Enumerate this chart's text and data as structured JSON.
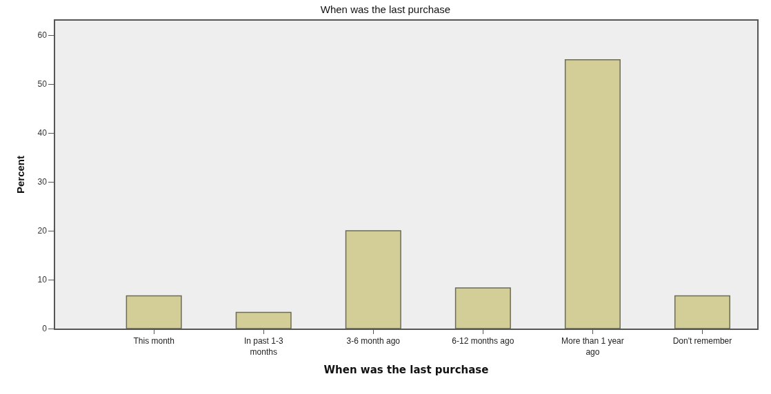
{
  "chart_data": {
    "type": "bar",
    "title": "When was the last purchase",
    "xlabel": "When was the last purchase",
    "ylabel": "Percent",
    "categories": [
      "This month",
      "In past 1-3 months",
      "3-6 month ago",
      "6-12 months ago",
      "More than 1 year ago",
      "Don't remember"
    ],
    "values": [
      6.7,
      3.3,
      20,
      8.3,
      55,
      6.7
    ],
    "color": "#d3ce97",
    "ylim": [
      0,
      63
    ],
    "yticks": [
      0,
      10,
      20,
      30,
      40,
      50,
      60
    ],
    "grid": false
  }
}
